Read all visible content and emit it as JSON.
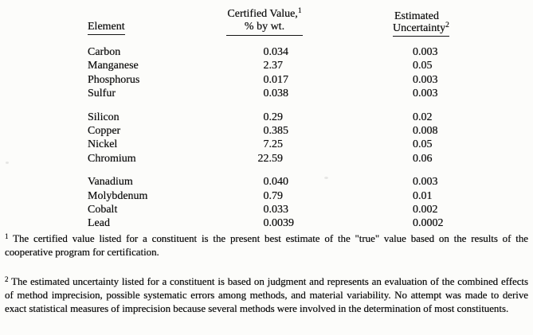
{
  "page": {
    "background": "#fcfcfa",
    "text_color": "#0d0d0d"
  },
  "table": {
    "col_element_header": "Element",
    "col_value_header_line1": "Certified Value,",
    "col_value_header_sup": "1",
    "col_value_header_line2": "% by wt.",
    "col_uncertainty_header_line1": "Estimated",
    "col_uncertainty_header_line2": "Uncertainty",
    "col_uncertainty_header_sup": "2",
    "groups": [
      {
        "rows": [
          {
            "element": "Carbon",
            "value": "0.034",
            "uncertainty": "0.003"
          },
          {
            "element": "Manganese",
            "value": "2.37",
            "uncertainty": "0.05"
          },
          {
            "element": "Phosphorus",
            "value": "0.017",
            "uncertainty": "0.003"
          },
          {
            "element": "Sulfur",
            "value": "0.038",
            "uncertainty": "0.003"
          }
        ]
      },
      {
        "rows": [
          {
            "element": "Silicon",
            "value": "0.29",
            "uncertainty": "0.02"
          },
          {
            "element": "Copper",
            "value": "0.385",
            "uncertainty": "0.008"
          },
          {
            "element": "Nickel",
            "value": "7.25",
            "uncertainty": "0.05"
          },
          {
            "element": "Chromium",
            "value": "22.59",
            "uncertainty": "0.06"
          }
        ]
      },
      {
        "rows": [
          {
            "element": "Vanadium",
            "value": "0.040",
            "uncertainty": "0.003"
          },
          {
            "element": "Molybdenum",
            "value": "0.79",
            "uncertainty": "0.01"
          },
          {
            "element": "Cobalt",
            "value": "0.033",
            "uncertainty": "0.002"
          },
          {
            "element": "Lead",
            "value": "0.0039",
            "uncertainty": "0.0002"
          }
        ]
      }
    ]
  },
  "footnotes": [
    {
      "sup": "1",
      "text": "The certified value listed for a constituent is the present best estimate of the \"true\" value based on the results of the cooperative program for certification."
    },
    {
      "sup": "2",
      "text": "The estimated uncertainty listed for a constituent is based on judgment and represents an evaluation of the combined effects of method imprecision, possible systematic errors among methods, and material variability. No attempt was made to derive exact statistical measures of imprecision because several methods were involved in the determination of most constituents."
    }
  ]
}
